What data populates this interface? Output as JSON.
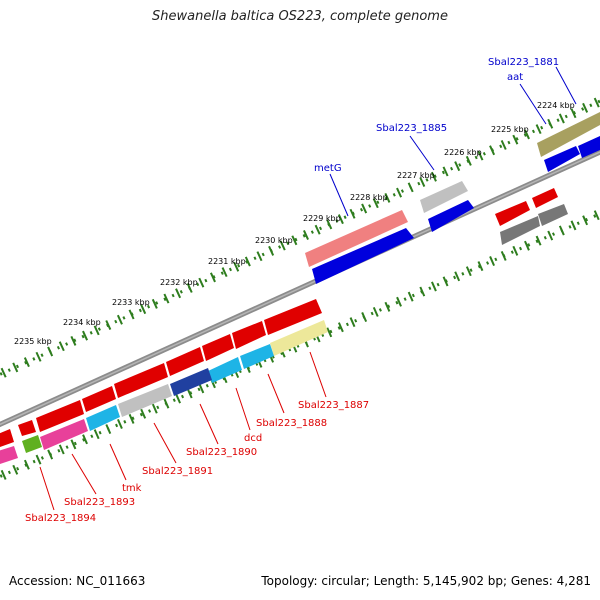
{
  "title": "Shewanella baltica OS223, complete genome",
  "footer": {
    "accession": "Accession: NC_011663",
    "summary": "Topology: circular; Length: 5,145,902 bp; Genes: 4,281"
  },
  "scale_labels": [
    "2224 kbp",
    "2225 kbp",
    "2226 kbp",
    "2227 kbp",
    "2228 kbp",
    "2229 kbp",
    "2230 kbp",
    "2231 kbp",
    "2232 kbp",
    "2233 kbp",
    "2234 kbp",
    "2235 kbp"
  ],
  "gene_labels_outer": [
    "Sbal223_1881",
    "aat",
    "Sbal223_1885",
    "metG"
  ],
  "gene_labels_inner": [
    "Sbal223_1887",
    "Sbal223_1888",
    "dcd",
    "Sbal223_1890",
    "Sbal223_1891",
    "tmk",
    "Sbal223_1893",
    "Sbal223_1894"
  ],
  "colors": {
    "label_outer": "#0000cc",
    "label_inner": "#dd0000",
    "backbone": "#8c8c8c",
    "scale_tick": "#2e7d1e",
    "cds_red": "#e00000",
    "cds_blue": "#0000dd",
    "cds_pink": "#f08080",
    "cds_gray": "#c0c0c0",
    "cds_dark_gray": "#777777",
    "cds_olive": "#a8a060",
    "cds_cyan": "#1eb4e6",
    "cds_magenta": "#e8409a",
    "cds_yellow": "#ede89a",
    "cds_navy": "#2040a0",
    "cds_green": "#60b020"
  }
}
